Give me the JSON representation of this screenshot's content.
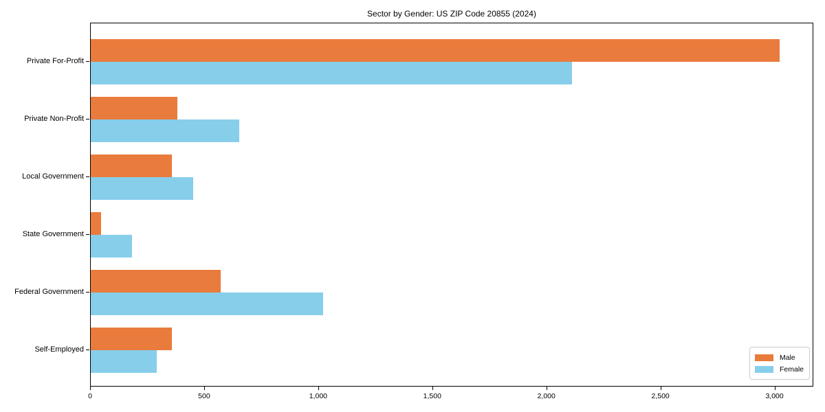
{
  "chart_data": {
    "type": "bar",
    "orientation": "horizontal",
    "title": "Sector by Gender: US ZIP Code 20855 (2024)",
    "categories": [
      "Private For-Profit",
      "Private Non-Profit",
      "Local Government",
      "State Government",
      "Federal Government",
      "Self-Employed"
    ],
    "series": [
      {
        "name": "Male",
        "color": "#e97b3d",
        "values": [
          3020,
          380,
          355,
          45,
          570,
          355
        ]
      },
      {
        "name": "Female",
        "color": "#87ceeb",
        "values": [
          2110,
          650,
          450,
          180,
          1020,
          290
        ]
      }
    ],
    "xlim": [
      0,
      3170
    ],
    "xticks": [
      0,
      500,
      1000,
      1500,
      2000,
      2500,
      3000
    ],
    "xtick_labels": [
      "0",
      "500",
      "1,000",
      "1,500",
      "2,000",
      "2,500",
      "3,000"
    ],
    "xlabel": "",
    "ylabel": "",
    "grid": false,
    "legend_position": "lower right"
  }
}
